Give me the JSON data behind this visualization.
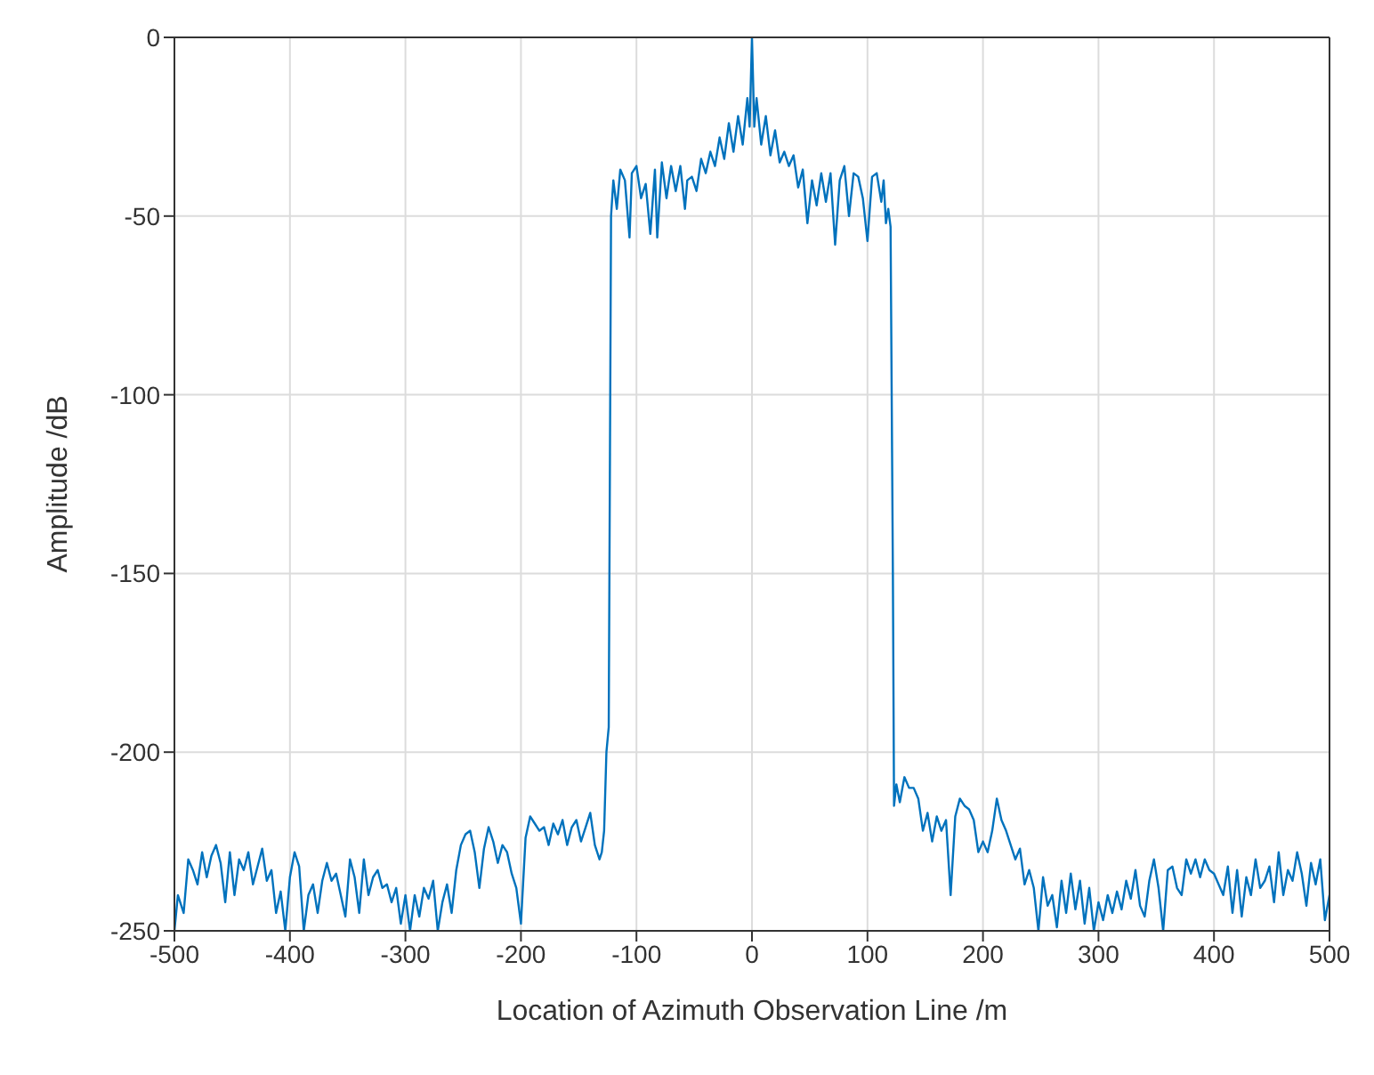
{
  "chart_data": {
    "type": "line",
    "xlabel": "Location of Azimuth Observation Line /m",
    "ylabel": "Amplitude /dB",
    "x": [
      -500,
      -497,
      -492,
      -488,
      -484,
      -480,
      -476,
      -472,
      -468,
      -464,
      -460,
      -456,
      -452,
      -448,
      -444,
      -440,
      -436,
      -432,
      -428,
      -424,
      -420,
      -416,
      -412,
      -408,
      -404,
      -400,
      -396,
      -392,
      -388,
      -384,
      -380,
      -376,
      -372,
      -368,
      -364,
      -360,
      -356,
      -352,
      -348,
      -344,
      -340,
      -336,
      -332,
      -328,
      -324,
      -320,
      -316,
      -312,
      -308,
      -304,
      -300,
      -296,
      -292,
      -288,
      -284,
      -280,
      -276,
      -272,
      -268,
      -264,
      -260,
      -256,
      -252,
      -248,
      -244,
      -240,
      -236,
      -232,
      -228,
      -224,
      -220,
      -216,
      -212,
      -208,
      -204,
      -200,
      -196,
      -192,
      -188,
      -184,
      -180,
      -176,
      -172,
      -168,
      -164,
      -160,
      -156,
      -152,
      -148,
      -144,
      -140,
      -136,
      -132,
      -130,
      -128,
      -126,
      -124,
      -122,
      -120,
      -117,
      -114,
      -110,
      -106,
      -104,
      -100,
      -96,
      -92,
      -88,
      -84,
      -82,
      -78,
      -74,
      -70,
      -66,
      -62,
      -58,
      -56,
      -52,
      -48,
      -44,
      -40,
      -36,
      -32,
      -28,
      -24,
      -20,
      -16,
      -12,
      -8,
      -4,
      -2,
      0,
      2,
      4,
      8,
      12,
      16,
      20,
      24,
      28,
      32,
      36,
      40,
      44,
      48,
      52,
      56,
      60,
      64,
      68,
      72,
      76,
      80,
      84,
      88,
      92,
      96,
      100,
      104,
      108,
      112,
      114,
      116,
      118,
      120,
      122,
      123,
      125,
      128,
      132,
      136,
      140,
      144,
      148,
      152,
      156,
      160,
      164,
      168,
      172,
      176,
      180,
      184,
      188,
      192,
      196,
      200,
      204,
      208,
      212,
      216,
      220,
      224,
      228,
      232,
      236,
      240,
      244,
      248,
      252,
      256,
      260,
      264,
      268,
      272,
      276,
      280,
      284,
      288,
      292,
      296,
      300,
      304,
      308,
      312,
      316,
      320,
      324,
      328,
      332,
      336,
      340,
      344,
      348,
      352,
      356,
      360,
      364,
      368,
      372,
      376,
      380,
      384,
      388,
      392,
      396,
      400,
      404,
      408,
      412,
      416,
      420,
      424,
      428,
      432,
      436,
      440,
      444,
      448,
      452,
      456,
      460,
      464,
      468,
      472,
      476,
      480,
      484,
      488,
      492,
      496,
      500
    ],
    "series": [
      {
        "color": "#0072bd",
        "values": [
          -250,
          -240,
          -245,
          -230,
          -233,
          -237,
          -228,
          -235,
          -229,
          -226,
          -231,
          -242,
          -228,
          -240,
          -230,
          -233,
          -228,
          -237,
          -232,
          -227,
          -236,
          -233,
          -245,
          -239,
          -250,
          -235,
          -228,
          -232,
          -250,
          -240,
          -237,
          -245,
          -236,
          -231,
          -236,
          -234,
          -240,
          -246,
          -230,
          -235,
          -245,
          -230,
          -240,
          -235,
          -233,
          -238,
          -237,
          -242,
          -238,
          -248,
          -240,
          -250,
          -240,
          -246,
          -238,
          -241,
          -236,
          -250,
          -242,
          -237,
          -245,
          -233,
          -226,
          -223,
          -222,
          -228,
          -238,
          -227,
          -221,
          -225,
          -231,
          -226,
          -228,
          -234,
          -238,
          -248,
          -224,
          -218,
          -220,
          -222,
          -221,
          -226,
          -220,
          -223,
          -219,
          -226,
          -221,
          -219,
          -225,
          -221,
          -217,
          -226,
          -230,
          -228,
          -222,
          -200,
          -193,
          -50,
          -40,
          -48,
          -37,
          -40,
          -56,
          -38,
          -36,
          -45,
          -41,
          -55,
          -37,
          -56,
          -35,
          -45,
          -36,
          -43,
          -36,
          -48,
          -40,
          -39,
          -43,
          -34,
          -38,
          -32,
          -36,
          -28,
          -34,
          -24,
          -32,
          -22,
          -30,
          -17,
          -25,
          0,
          -25,
          -17,
          -30,
          -22,
          -33,
          -26,
          -35,
          -32,
          -36,
          -33,
          -42,
          -37,
          -52,
          -40,
          -47,
          -38,
          -46,
          -38,
          -58,
          -40,
          -36,
          -50,
          -38,
          -39,
          -45,
          -57,
          -39,
          -38,
          -46,
          -40,
          -52,
          -48,
          -53,
          -150,
          -215,
          -209,
          -214,
          -207,
          -210,
          -210,
          -213,
          -222,
          -217,
          -225,
          -218,
          -222,
          -219,
          -240,
          -218,
          -213,
          -215,
          -216,
          -219,
          -228,
          -225,
          -228,
          -222,
          -213,
          -219,
          -222,
          -226,
          -230,
          -227,
          -237,
          -233,
          -238,
          -250,
          -235,
          -243,
          -240,
          -249,
          -236,
          -245,
          -234,
          -244,
          -236,
          -248,
          -238,
          -250,
          -242,
          -247,
          -240,
          -245,
          -239,
          -244,
          -236,
          -241,
          -233,
          -243,
          -246,
          -236,
          -230,
          -238,
          -250,
          -233,
          -232,
          -238,
          -240,
          -230,
          -234,
          -230,
          -235,
          -230,
          -233,
          -234,
          -237,
          -240,
          -232,
          -245,
          -233,
          -246,
          -235,
          -240,
          -230,
          -238,
          -236,
          -232,
          -242,
          -228,
          -240,
          -233,
          -236,
          -228,
          -234,
          -243,
          -231,
          -237,
          -230,
          -247,
          -240
        ]
      }
    ],
    "xlim": [
      -500,
      500
    ],
    "xticks": [
      -500,
      -400,
      -300,
      -200,
      -100,
      0,
      100,
      200,
      300,
      400,
      500
    ],
    "ylim": [
      -250,
      0
    ],
    "yticks": [
      -250,
      -200,
      -150,
      -100,
      -50,
      0
    ],
    "grid": true
  }
}
